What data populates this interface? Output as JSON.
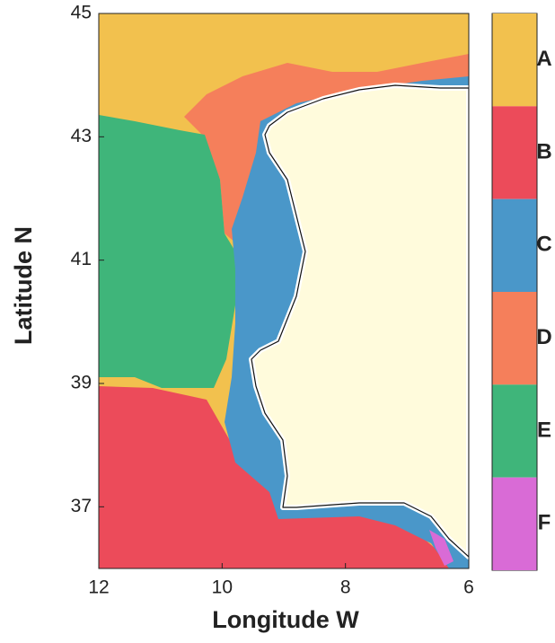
{
  "chart_data": {
    "type": "map",
    "xlabel": "Longitude W",
    "ylabel": "Latitude N",
    "xlim": [
      12,
      6
    ],
    "ylim": [
      36,
      45
    ],
    "xticks": [
      12,
      10,
      8,
      6
    ],
    "yticks": [
      37,
      39,
      41,
      43,
      45
    ],
    "classes": [
      {
        "name": "A",
        "color": "#f2c14e"
      },
      {
        "name": "B",
        "color": "#ec4b5a"
      },
      {
        "name": "C",
        "color": "#4a97c9"
      },
      {
        "name": "D",
        "color": "#f57f5b"
      },
      {
        "name": "E",
        "color": "#3fb57a"
      },
      {
        "name": "F",
        "color": "#d96bd6"
      }
    ]
  }
}
